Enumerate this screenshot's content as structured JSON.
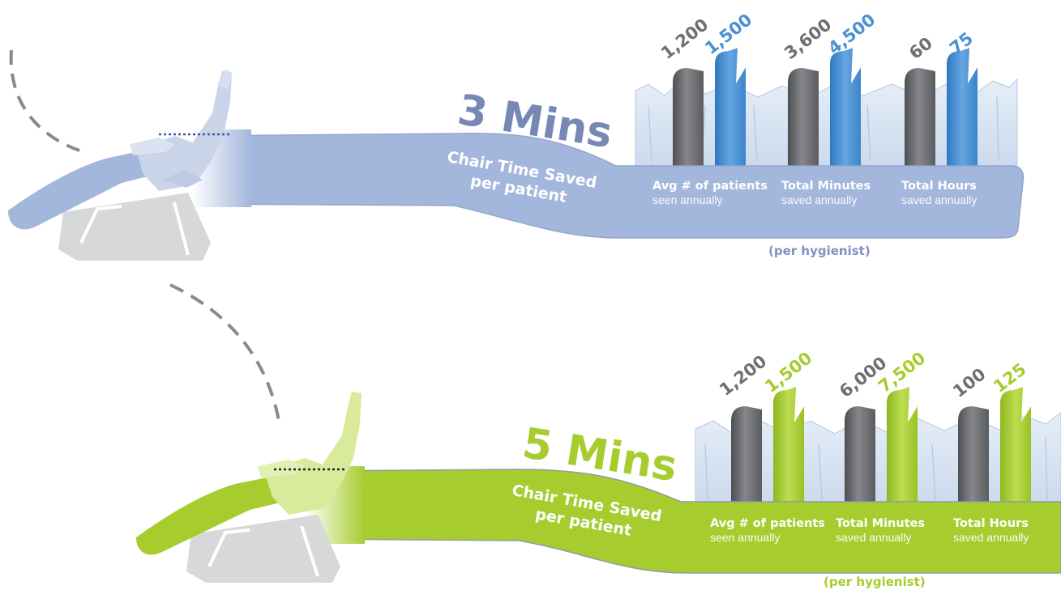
{
  "chart_data": [
    {
      "type": "bar",
      "title": "3 Mins",
      "subtitle_lines": [
        "Chair Time Saved",
        "per patient"
      ],
      "footnote": "(per hygienist)",
      "color_base": "#6e6f73",
      "color_saved": "#4a90d2",
      "color_band": "#a3b6dc",
      "color_title": "#7788b4",
      "groups": [
        {
          "title": "Avg # of patients",
          "sub": "seen annually",
          "values": [
            1200,
            1500
          ],
          "labels": [
            "1,200",
            "1,500"
          ]
        },
        {
          "title": "Total Minutes",
          "sub": "saved annually",
          "values": [
            3600,
            4500
          ],
          "labels": [
            "3,600",
            "4,500"
          ]
        },
        {
          "title": "Total Hours",
          "sub": "saved annually",
          "values": [
            60,
            75
          ],
          "labels": [
            "60",
            "75"
          ]
        }
      ]
    },
    {
      "type": "bar",
      "title": "5 Mins",
      "subtitle_lines": [
        "Chair Time Saved",
        "per patient"
      ],
      "footnote": "(per hygienist)",
      "color_base": "#6e6f73",
      "color_saved": "#a6cc2e",
      "color_band": "#a6cc2e",
      "color_title": "#a6cc2e",
      "groups": [
        {
          "title": "Avg # of patients",
          "sub": "seen annually",
          "values": [
            1200,
            1500
          ],
          "labels": [
            "1,200",
            "1,500"
          ]
        },
        {
          "title": "Total Minutes",
          "sub": "saved annually",
          "values": [
            6000,
            7500
          ],
          "labels": [
            "6,000",
            "7,500"
          ]
        },
        {
          "title": "Total Hours",
          "sub": "saved annually",
          "values": [
            100,
            125
          ],
          "labels": [
            "100",
            "125"
          ]
        }
      ]
    }
  ]
}
